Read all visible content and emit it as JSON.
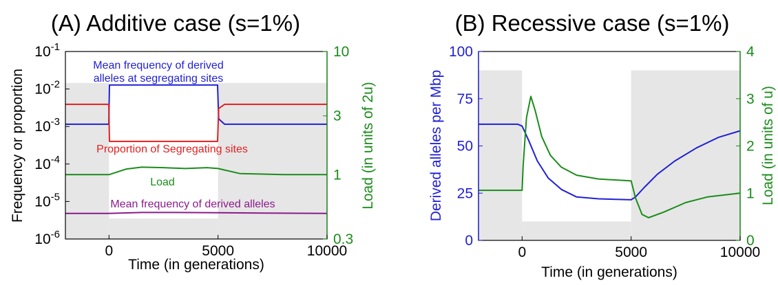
{
  "chart_data": [
    {
      "type": "line",
      "title": "(A) Additive case (s=1%)",
      "xlabel": "Time (in generations)",
      "ylabel": "Frequency or proportion",
      "y2label": "Load (in units of 2u)",
      "xlim": [
        -2000,
        10000
      ],
      "ylim": [
        1e-06,
        0.1
      ],
      "yscale": "log",
      "y2lim": [
        0.3,
        10
      ],
      "y2scale": "log",
      "xticks": [
        0,
        5000,
        10000
      ],
      "xtick_labels": [
        "0",
        "5000",
        "10000"
      ],
      "yticks": [
        1e-06,
        1e-05,
        0.0001,
        0.001,
        0.01,
        0.1
      ],
      "ytick_bases": [
        "10",
        "10",
        "10",
        "10",
        "10",
        "10"
      ],
      "ytick_exps": [
        "-6",
        "-5",
        "-4",
        "-3",
        "-2",
        "-1"
      ],
      "y2ticks": [
        0.3,
        1,
        3,
        10
      ],
      "y2tick_labels": [
        "0.3",
        "1",
        "3",
        "10"
      ],
      "shaded_regions": [
        [
          -2000,
          0
        ],
        [
          5000,
          10000
        ]
      ],
      "shade_top": 0.0145,
      "grid": false,
      "colors": {
        "left_axis": "#000000",
        "right_axis": "#1a8c1a",
        "shade": "#e6e6e6"
      },
      "annotations": {
        "mean_freq_segregating_line1": "Mean frequency of derived",
        "mean_freq_segregating_line2": "alleles at segregating sites",
        "proportion_segregating": "Proportion of Segregating sites",
        "load": "Load",
        "mean_freq_derived": "Mean frequency of derived alleles"
      },
      "series": [
        {
          "key": "mean_freq_segregating",
          "color": "#1f1fd6",
          "axis": "left",
          "x": [
            -2000,
            -10,
            20,
            4980,
            5030,
            5300,
            10000
          ],
          "y": [
            0.00115,
            0.00115,
            0.0128,
            0.0128,
            0.0016,
            0.00115,
            0.00115
          ]
        },
        {
          "key": "proportion_segregating",
          "color": "#e02020",
          "axis": "left",
          "x": [
            -2000,
            -10,
            20,
            4980,
            5030,
            5300,
            10000
          ],
          "y": [
            0.0039,
            0.0039,
            0.0004,
            0.0004,
            0.003,
            0.0039,
            0.0039
          ]
        },
        {
          "key": "load",
          "color": "#1a8c1a",
          "axis": "right",
          "x": [
            -2000,
            0,
            800,
            1500,
            2500,
            3500,
            4500,
            5000,
            6000,
            8000,
            10000
          ],
          "y": [
            1.0,
            1.0,
            1.11,
            1.15,
            1.14,
            1.12,
            1.14,
            1.12,
            1.02,
            1.0,
            1.0
          ]
        },
        {
          "key": "mean_freq_derived",
          "color": "#8b1a8b",
          "axis": "left",
          "x": [
            -2000,
            0,
            1500,
            3000,
            5000,
            7000,
            10000
          ],
          "y": [
            4.8e-06,
            4.8e-06,
            5.1e-06,
            5.1e-06,
            5e-06,
            4.9e-06,
            4.8e-06
          ]
        }
      ]
    },
    {
      "type": "line",
      "title": "(B) Recessive case (s=1%)",
      "xlabel": "Time (in generations)",
      "ylabel": "Derived alleles per Mbp",
      "y2label": "Load (in units of u)",
      "xlim": [
        -2000,
        10000
      ],
      "ylim": [
        0,
        100
      ],
      "y2lim": [
        0,
        4
      ],
      "xticks": [
        0,
        5000,
        10000
      ],
      "xtick_labels": [
        "0",
        "5000",
        "10000"
      ],
      "yticks": [
        0,
        25,
        50,
        75,
        100
      ],
      "ytick_labels": [
        "0",
        "25",
        "50",
        "75",
        "100"
      ],
      "y2ticks": [
        0,
        1,
        2,
        3,
        4
      ],
      "y2tick_labels": [
        "0",
        "1",
        "2",
        "3",
        "4"
      ],
      "shaded_regions": [
        [
          -2000,
          0
        ],
        [
          5000,
          10000
        ]
      ],
      "shade_top": 90,
      "shade_bottom": 10,
      "grid": false,
      "colors": {
        "left_axis": "#1f1fd6",
        "right_axis": "#1a8c1a",
        "shade": "#e6e6e6"
      },
      "series": [
        {
          "key": "derived_alleles",
          "color": "#1f1fd6",
          "axis": "left",
          "x": [
            -2000,
            -200,
            0,
            300,
            700,
            1200,
            1800,
            2500,
            3500,
            5000,
            5200,
            5600,
            6200,
            7000,
            8000,
            9000,
            10000
          ],
          "y": [
            61.5,
            61.5,
            60.5,
            53,
            42,
            33,
            27,
            23,
            22,
            21.5,
            23,
            28,
            35,
            42,
            49,
            54.5,
            58
          ]
        },
        {
          "key": "load",
          "color": "#1a8c1a",
          "axis": "right",
          "x": [
            -2000,
            0,
            50,
            200,
            400,
            600,
            900,
            1300,
            1800,
            2500,
            3500,
            5000,
            5200,
            5500,
            5800,
            6500,
            7500,
            8500,
            10000
          ],
          "y": [
            1.06,
            1.06,
            1.6,
            2.6,
            3.05,
            2.75,
            2.2,
            1.8,
            1.55,
            1.38,
            1.3,
            1.26,
            0.9,
            0.55,
            0.48,
            0.6,
            0.8,
            0.92,
            1.0
          ]
        }
      ]
    }
  ]
}
